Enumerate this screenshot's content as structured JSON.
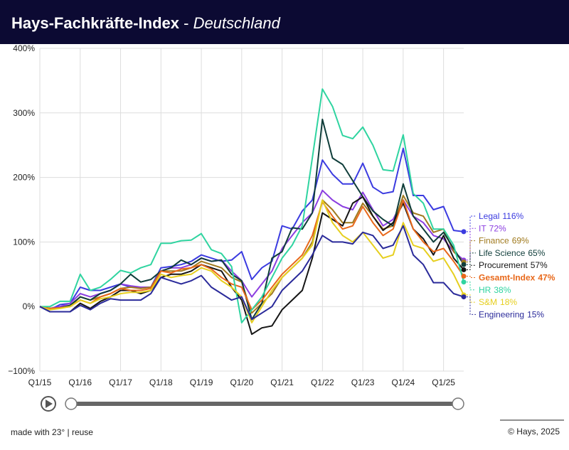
{
  "chart_data": {
    "type": "line",
    "title": "Hays-Fachkräfte-Index",
    "title_separator": "-",
    "subtitle": "Deutschland",
    "footer_left": "made with 23° | reuse",
    "footer_right": "© Hays, 2025",
    "categories": [
      "Q1/15",
      null,
      null,
      null,
      "Q1/16",
      null,
      null,
      null,
      "Q1/17",
      null,
      null,
      null,
      "Q1/18",
      null,
      null,
      null,
      "Q1/19",
      null,
      null,
      null,
      "Q1/20",
      null,
      null,
      null,
      "Q1/21",
      null,
      null,
      null,
      "Q1/22",
      null,
      null,
      null,
      "Q1/23",
      null,
      null,
      null,
      "Q1/24",
      null,
      null,
      null,
      "Q1/25",
      null,
      null
    ],
    "ylim": [
      -100,
      400
    ],
    "yticks": [
      {
        "value": -100,
        "label": "−100%"
      },
      {
        "value": 0,
        "label": "0%"
      },
      {
        "value": 100,
        "label": "100%"
      },
      {
        "value": 200,
        "label": "200%"
      },
      {
        "value": 300,
        "label": "300%"
      },
      {
        "value": 400,
        "label": "400%"
      }
    ],
    "grid": true,
    "series": [
      {
        "name": "Legal",
        "color": "#3b3be0",
        "end_label": "116%",
        "values": [
          0,
          -5,
          3,
          5,
          30,
          25,
          25,
          30,
          35,
          30,
          30,
          30,
          60,
          62,
          65,
          70,
          80,
          75,
          70,
          72,
          85,
          42,
          60,
          70,
          125,
          120,
          148,
          165,
          227,
          205,
          190,
          190,
          222,
          185,
          175,
          178,
          245,
          172,
          172,
          150,
          155,
          118,
          116
        ]
      },
      {
        "name": "IT",
        "color": "#8b3ee0",
        "end_label": "72%",
        "values": [
          0,
          -3,
          0,
          5,
          20,
          15,
          20,
          25,
          35,
          32,
          30,
          30,
          55,
          60,
          60,
          65,
          75,
          70,
          72,
          55,
          40,
          15,
          35,
          55,
          90,
          110,
          130,
          145,
          180,
          165,
          155,
          150,
          177,
          150,
          125,
          135,
          165,
          140,
          130,
          110,
          105,
          85,
          72
        ]
      },
      {
        "name": "Finance",
        "color": "#a07a1e",
        "end_label": "69%",
        "values": [
          0,
          -3,
          -2,
          0,
          15,
          10,
          15,
          20,
          28,
          30,
          28,
          30,
          55,
          55,
          55,
          60,
          70,
          65,
          60,
          45,
          38,
          -10,
          5,
          20,
          45,
          60,
          75,
          100,
          165,
          150,
          130,
          130,
          160,
          140,
          120,
          125,
          172,
          145,
          140,
          115,
          120,
          85,
          69
        ]
      },
      {
        "name": "Life Science",
        "color": "#0f3d3a",
        "end_label": "65%",
        "values": [
          0,
          -3,
          -2,
          2,
          15,
          10,
          20,
          25,
          35,
          50,
          38,
          42,
          55,
          60,
          72,
          65,
          75,
          70,
          72,
          50,
          40,
          -20,
          5,
          75,
          85,
          122,
          120,
          145,
          290,
          230,
          220,
          195,
          170,
          148,
          135,
          125,
          190,
          140,
          120,
          100,
          115,
          90,
          65
        ]
      },
      {
        "name": "Procurement",
        "color": "#151515",
        "end_label": "57%",
        "values": [
          0,
          -8,
          -8,
          -8,
          5,
          -3,
          8,
          15,
          25,
          25,
          20,
          25,
          45,
          50,
          50,
          55,
          65,
          60,
          55,
          30,
          10,
          -43,
          -33,
          -30,
          -5,
          10,
          25,
          75,
          145,
          135,
          125,
          160,
          170,
          140,
          118,
          130,
          160,
          120,
          105,
          80,
          110,
          75,
          57
        ]
      },
      {
        "name": "Gesamt-Index",
        "color": "#e8681a",
        "bold": true,
        "end_label": "47%",
        "values": [
          0,
          -3,
          -2,
          0,
          10,
          5,
          15,
          20,
          28,
          25,
          25,
          28,
          55,
          52,
          58,
          60,
          65,
          58,
          45,
          35,
          30,
          -5,
          10,
          30,
          50,
          65,
          80,
          110,
          162,
          140,
          120,
          125,
          155,
          130,
          110,
          120,
          165,
          120,
          100,
          85,
          90,
          70,
          47
        ]
      },
      {
        "name": "HR",
        "color": "#2fd4a0",
        "end_label": "38%",
        "values": [
          0,
          0,
          8,
          8,
          50,
          25,
          30,
          42,
          56,
          52,
          60,
          65,
          98,
          98,
          102,
          103,
          113,
          88,
          82,
          62,
          -25,
          -5,
          15,
          45,
          75,
          95,
          125,
          230,
          337,
          310,
          265,
          260,
          278,
          250,
          212,
          210,
          266,
          175,
          160,
          120,
          120,
          95,
          38
        ]
      },
      {
        "name": "S&M",
        "color": "#e6cf1f",
        "end_label": "18%",
        "values": [
          0,
          -5,
          -3,
          0,
          10,
          5,
          12,
          15,
          20,
          22,
          22,
          25,
          50,
          45,
          48,
          50,
          60,
          55,
          40,
          30,
          15,
          -25,
          0,
          25,
          45,
          60,
          75,
          95,
          165,
          130,
          110,
          100,
          115,
          95,
          75,
          80,
          130,
          95,
          90,
          70,
          75,
          50,
          18
        ]
      },
      {
        "name": "Engineering",
        "color": "#2a2a9a",
        "end_label": "15%",
        "values": [
          0,
          -8,
          -8,
          -8,
          2,
          -5,
          5,
          12,
          10,
          10,
          10,
          20,
          45,
          40,
          35,
          40,
          48,
          30,
          20,
          10,
          15,
          -20,
          -10,
          0,
          25,
          40,
          55,
          80,
          110,
          100,
          100,
          97,
          115,
          110,
          90,
          95,
          125,
          80,
          65,
          37,
          37,
          20,
          15
        ]
      }
    ]
  }
}
